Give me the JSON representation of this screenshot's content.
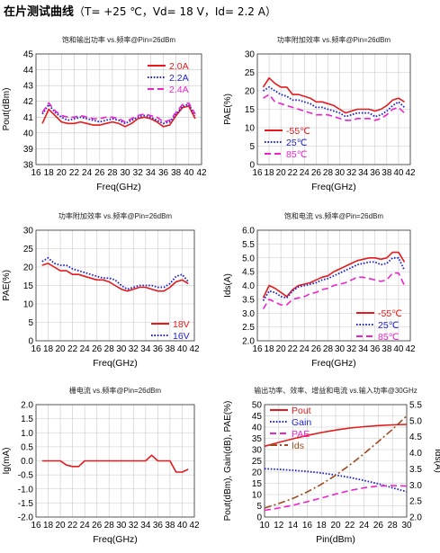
{
  "header": {
    "title": "在片测试曲线",
    "conditions": "（T= +25 ℃，Vd= 18 V，Id= 2.2 A）"
  },
  "colors": {
    "red": "#e41a1c",
    "blue": "#1f22cc",
    "magenta": "#ee22cc",
    "brown": "#9e4a1e",
    "grid": "#c8c8c8"
  },
  "chart_data": [
    {
      "id": "pout-vs-freq",
      "type": "line",
      "title": "饱和输出功率 vs.频率@Pin=26dBm",
      "xlabel": "Freq(GHz)",
      "ylabel": "Pout(dBm)",
      "xlim": [
        16,
        42
      ],
      "ylim": [
        38,
        45
      ],
      "xticks": [
        16,
        18,
        20,
        22,
        24,
        26,
        28,
        30,
        32,
        34,
        36,
        38,
        40,
        42
      ],
      "yticks": [
        38,
        39,
        40,
        41,
        42,
        43,
        44,
        45
      ],
      "legend_position": "top-right",
      "grid": true,
      "series": [
        {
          "name": "2.0A",
          "color": "#e41a1c",
          "dash": "solid",
          "x": [
            17,
            18,
            19,
            20,
            21,
            22,
            23,
            24,
            25,
            26,
            27,
            28,
            29,
            30,
            31,
            32,
            33,
            34,
            35,
            36,
            37,
            38,
            39,
            40,
            41
          ],
          "y": [
            40.6,
            41.5,
            41.1,
            40.7,
            40.6,
            40.6,
            40.7,
            40.6,
            40.5,
            40.5,
            40.6,
            40.7,
            40.6,
            40.4,
            40.6,
            40.9,
            41.0,
            40.9,
            40.7,
            40.4,
            40.5,
            41.1,
            41.6,
            41.7,
            40.9
          ]
        },
        {
          "name": "2.2A",
          "color": "#1f22cc",
          "dash": "dot",
          "x": [
            17,
            18,
            19,
            20,
            21,
            22,
            23,
            24,
            25,
            26,
            27,
            28,
            29,
            30,
            31,
            32,
            33,
            34,
            35,
            36,
            37,
            38,
            39,
            40,
            41
          ],
          "y": [
            41.2,
            41.8,
            41.3,
            41.0,
            40.8,
            40.9,
            41.0,
            40.9,
            40.8,
            40.7,
            40.8,
            40.9,
            40.8,
            40.6,
            40.8,
            41.0,
            41.1,
            41.0,
            40.8,
            40.6,
            40.7,
            41.2,
            41.7,
            41.8,
            41.1
          ]
        },
        {
          "name": "2.4A",
          "color": "#ee22cc",
          "dash": "dash",
          "x": [
            17,
            18,
            19,
            20,
            21,
            22,
            23,
            24,
            25,
            26,
            27,
            28,
            29,
            30,
            31,
            32,
            33,
            34,
            35,
            36,
            37,
            38,
            39,
            40,
            41
          ],
          "y": [
            41.3,
            41.9,
            41.4,
            41.1,
            41.0,
            41.0,
            41.1,
            41.0,
            40.9,
            40.9,
            41.0,
            41.0,
            40.9,
            40.7,
            40.9,
            41.1,
            41.2,
            41.1,
            41.0,
            40.7,
            40.8,
            41.3,
            41.8,
            41.9,
            41.2
          ]
        }
      ]
    },
    {
      "id": "pae-vs-freq-temp",
      "type": "line",
      "title": "功率附加效率 vs.频率@Pin=26dBm",
      "xlabel": "Freq(GHz)",
      "ylabel": "PAE(%)",
      "xlim": [
        16,
        42
      ],
      "ylim": [
        0,
        30
      ],
      "xticks": [
        16,
        18,
        20,
        22,
        24,
        26,
        28,
        30,
        32,
        34,
        36,
        38,
        40,
        42
      ],
      "yticks": [
        0,
        5,
        10,
        15,
        20,
        25,
        30
      ],
      "legend_position": "bottom-right",
      "grid": true,
      "series": [
        {
          "name": "-55℃",
          "color": "#e41a1c",
          "dash": "solid",
          "x": [
            17,
            18,
            19,
            20,
            21,
            22,
            23,
            24,
            25,
            26,
            27,
            28,
            29,
            30,
            31,
            32,
            33,
            34,
            35,
            36,
            37,
            38,
            39,
            40,
            41
          ],
          "y": [
            21.0,
            23.5,
            22.0,
            21.0,
            21.0,
            19.0,
            19.0,
            18.5,
            18.0,
            17.0,
            17.0,
            16.5,
            16.0,
            15.0,
            14.0,
            14.5,
            15.0,
            15.0,
            15.0,
            14.5,
            15.0,
            16.0,
            17.5,
            18.0,
            17.0
          ]
        },
        {
          "name": "25℃",
          "color": "#1f22cc",
          "dash": "dot",
          "x": [
            17,
            18,
            19,
            20,
            21,
            22,
            23,
            24,
            25,
            26,
            27,
            28,
            29,
            30,
            31,
            32,
            33,
            34,
            35,
            36,
            37,
            38,
            39,
            40,
            41
          ],
          "y": [
            20.0,
            21.0,
            20.0,
            19.0,
            18.5,
            17.5,
            17.5,
            17.0,
            16.5,
            15.5,
            15.5,
            15.0,
            14.5,
            14.0,
            13.0,
            13.5,
            14.0,
            14.0,
            14.0,
            13.0,
            13.5,
            14.5,
            16.0,
            17.0,
            15.5
          ]
        },
        {
          "name": "85℃",
          "color": "#ee22cc",
          "dash": "dash",
          "x": [
            17,
            18,
            19,
            20,
            21,
            22,
            23,
            24,
            25,
            26,
            27,
            28,
            29,
            30,
            31,
            32,
            33,
            34,
            35,
            36,
            37,
            38,
            39,
            40,
            41
          ],
          "y": [
            18.0,
            19.0,
            17.0,
            16.5,
            16.0,
            15.5,
            15.0,
            14.5,
            14.0,
            13.5,
            13.5,
            13.5,
            13.0,
            12.5,
            12.0,
            12.0,
            12.5,
            12.5,
            12.5,
            12.0,
            12.5,
            13.5,
            15.0,
            15.5,
            14.0
          ]
        }
      ]
    },
    {
      "id": "pae-vs-freq-vd",
      "type": "line",
      "title": "功率附加效率 vs.频率@Pin=26dBm",
      "xlabel": "Freq(GHz)",
      "ylabel": "PAE(%)",
      "xlim": [
        16,
        42
      ],
      "ylim": [
        0,
        30
      ],
      "xticks": [
        16,
        18,
        20,
        22,
        24,
        26,
        28,
        30,
        32,
        34,
        36,
        38,
        40,
        42
      ],
      "yticks": [
        0,
        5,
        10,
        15,
        20,
        25,
        30
      ],
      "legend_position": "bottom-right",
      "grid": true,
      "series": [
        {
          "name": "18V",
          "color": "#e41a1c",
          "dash": "solid",
          "x": [
            17,
            18,
            19,
            20,
            21,
            22,
            23,
            24,
            25,
            26,
            27,
            28,
            29,
            30,
            31,
            32,
            33,
            34,
            35,
            36,
            37,
            38,
            39,
            40,
            41
          ],
          "y": [
            20.5,
            21.0,
            20.0,
            19.0,
            19.0,
            18.0,
            18.0,
            17.5,
            17.0,
            16.5,
            16.5,
            16.0,
            15.0,
            14.0,
            13.5,
            14.0,
            14.5,
            14.5,
            14.0,
            13.5,
            13.5,
            14.5,
            16.0,
            16.5,
            15.5
          ]
        },
        {
          "name": "16V",
          "color": "#1f22cc",
          "dash": "dot",
          "x": [
            17,
            18,
            19,
            20,
            21,
            22,
            23,
            24,
            25,
            26,
            27,
            28,
            29,
            30,
            31,
            32,
            33,
            34,
            35,
            36,
            37,
            38,
            39,
            40,
            41
          ],
          "y": [
            21.5,
            22.5,
            21.0,
            20.5,
            20.5,
            19.5,
            19.0,
            18.5,
            18.0,
            17.5,
            17.0,
            17.0,
            16.5,
            15.0,
            14.0,
            14.5,
            15.0,
            15.0,
            15.0,
            14.5,
            14.5,
            15.5,
            17.5,
            18.0,
            16.0
          ]
        }
      ]
    },
    {
      "id": "ids-vs-freq",
      "type": "line",
      "title": "饱和电流 vs.频率@Pin=26dBm",
      "xlabel": "Freq(GHz)",
      "ylabel": "Ids(A)",
      "xlim": [
        16,
        42
      ],
      "ylim": [
        2.0,
        6.0
      ],
      "xticks": [
        16,
        18,
        20,
        22,
        24,
        26,
        28,
        30,
        32,
        34,
        36,
        38,
        40,
        42
      ],
      "yticks": [
        2.0,
        2.5,
        3.0,
        3.5,
        4.0,
        4.5,
        5.0,
        5.5,
        6.0
      ],
      "legend_position": "bottom-right",
      "grid": true,
      "series": [
        {
          "name": "-55℃",
          "color": "#e41a1c",
          "dash": "solid",
          "x": [
            17,
            18,
            19,
            20,
            21,
            22,
            23,
            24,
            25,
            26,
            27,
            28,
            29,
            30,
            31,
            32,
            33,
            34,
            35,
            36,
            37,
            38,
            39,
            40,
            41
          ],
          "y": [
            3.55,
            4.0,
            3.9,
            3.75,
            3.6,
            3.85,
            4.0,
            4.05,
            4.1,
            4.2,
            4.3,
            4.35,
            4.5,
            4.6,
            4.7,
            4.8,
            4.9,
            4.95,
            5.0,
            5.0,
            4.95,
            5.0,
            5.2,
            5.2,
            4.85
          ]
        },
        {
          "name": "25℃",
          "color": "#1f22cc",
          "dash": "dot",
          "x": [
            17,
            18,
            19,
            20,
            21,
            22,
            23,
            24,
            25,
            26,
            27,
            28,
            29,
            30,
            31,
            32,
            33,
            34,
            35,
            36,
            37,
            38,
            39,
            40,
            41
          ],
          "y": [
            3.45,
            3.8,
            3.75,
            3.6,
            3.55,
            3.8,
            3.95,
            4.0,
            4.05,
            4.1,
            4.2,
            4.25,
            4.35,
            4.45,
            4.55,
            4.65,
            4.75,
            4.8,
            4.85,
            4.85,
            4.75,
            4.8,
            5.0,
            5.0,
            4.55
          ]
        },
        {
          "name": "85℃",
          "color": "#ee22cc",
          "dash": "dash",
          "x": [
            17,
            18,
            19,
            20,
            21,
            22,
            23,
            24,
            25,
            26,
            27,
            28,
            29,
            30,
            31,
            32,
            33,
            34,
            35,
            36,
            37,
            38,
            39,
            40,
            41
          ],
          "y": [
            3.15,
            3.5,
            3.4,
            3.3,
            3.3,
            3.5,
            3.55,
            3.6,
            3.7,
            3.75,
            3.85,
            3.9,
            4.0,
            4.05,
            4.1,
            4.2,
            4.3,
            4.3,
            4.25,
            4.2,
            4.15,
            4.2,
            4.45,
            4.45,
            4.0
          ]
        }
      ]
    },
    {
      "id": "ig-vs-freq",
      "type": "line",
      "title": "栅电流 vs.频率@Pin=26dBm",
      "xlabel": "Freq(GHz)",
      "ylabel": "Ig(mA)",
      "xlim": [
        16,
        42
      ],
      "ylim": [
        -2.0,
        2.0
      ],
      "xticks": [
        16,
        18,
        20,
        22,
        24,
        26,
        28,
        30,
        32,
        34,
        36,
        38,
        40,
        42
      ],
      "yticks": [
        -2.0,
        -1.5,
        -1.0,
        -0.5,
        0.0,
        0.5,
        1.0,
        1.5,
        2.0
      ],
      "grid": true,
      "series": [
        {
          "name": "",
          "color": "#e41a1c",
          "dash": "solid",
          "x": [
            17,
            18,
            19,
            20,
            21,
            22,
            23,
            24,
            25,
            26,
            27,
            28,
            29,
            30,
            31,
            32,
            33,
            34,
            35,
            36,
            37,
            38,
            39,
            40,
            41
          ],
          "y": [
            0.0,
            0.0,
            0.0,
            0.0,
            -0.15,
            -0.2,
            -0.2,
            0.0,
            0.0,
            0.0,
            0.0,
            0.0,
            0.0,
            0.0,
            0.0,
            0.0,
            0.0,
            0.0,
            0.2,
            0.0,
            0.0,
            0.0,
            -0.4,
            -0.4,
            -0.3
          ]
        }
      ]
    },
    {
      "id": "power-sweep",
      "type": "line",
      "title": "输出功率、效率、增益和电流 vs.输入功率@30GHz",
      "xlabel": "Pin(dBm)",
      "ylabel": "Pout(dBm), Gain(dB), PAE(%)",
      "ylabel_right": "Ids(A)",
      "xlim": [
        10,
        30
      ],
      "ylim": [
        0,
        50
      ],
      "ylim_right": [
        2.0,
        5.5
      ],
      "xticks": [
        10,
        12,
        14,
        16,
        18,
        20,
        22,
        24,
        26,
        28,
        30
      ],
      "yticks": [
        0,
        5,
        10,
        15,
        20,
        25,
        30,
        35,
        40,
        45,
        50
      ],
      "yticks_right": [
        2.0,
        2.5,
        3.0,
        3.5,
        4.0,
        4.5,
        5.0,
        5.5
      ],
      "legend_position": "top-left",
      "grid": true,
      "series": [
        {
          "name": "Pout",
          "color": "#e41a1c",
          "dash": "solid",
          "axis": "left",
          "x": [
            10,
            12,
            14,
            16,
            18,
            20,
            22,
            24,
            26,
            28,
            30
          ],
          "y": [
            31.5,
            33.2,
            34.8,
            36.3,
            37.6,
            38.7,
            39.6,
            40.2,
            40.7,
            41.0,
            41.2
          ]
        },
        {
          "name": "Gain",
          "color": "#1f22cc",
          "dash": "dot",
          "axis": "left",
          "x": [
            10,
            12,
            14,
            16,
            18,
            20,
            22,
            24,
            26,
            28,
            30
          ],
          "y": [
            21.5,
            21.2,
            20.8,
            20.3,
            19.6,
            18.7,
            17.6,
            16.3,
            14.8,
            13.0,
            11.3
          ]
        },
        {
          "name": "PAE",
          "color": "#ee22cc",
          "dash": "dash",
          "axis": "left",
          "x": [
            10,
            12,
            14,
            16,
            18,
            20,
            22,
            24,
            26,
            28,
            30
          ],
          "y": [
            3.0,
            4.0,
            5.3,
            6.8,
            8.5,
            10.2,
            11.8,
            13.0,
            13.8,
            14.0,
            13.8
          ]
        },
        {
          "name": "Ids",
          "color": "#9e4a1e",
          "dash": "dashdot",
          "axis": "right",
          "x": [
            10,
            12,
            14,
            16,
            18,
            20,
            22,
            24,
            26,
            28,
            30
          ],
          "y": [
            2.28,
            2.42,
            2.58,
            2.78,
            3.02,
            3.3,
            3.62,
            3.97,
            4.35,
            4.73,
            5.15
          ]
        }
      ]
    }
  ]
}
